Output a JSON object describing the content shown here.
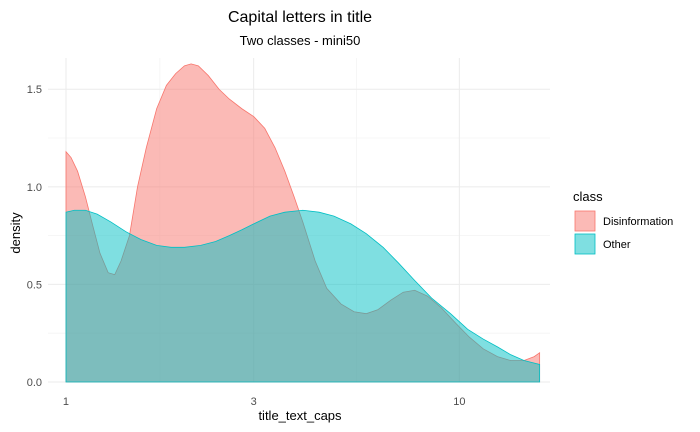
{
  "chart_data": {
    "type": "area",
    "title": "Capital letters in title",
    "subtitle": "Two classes - mini50",
    "xlabel": "title_text_caps",
    "ylabel": "density",
    "x_scale": "log10",
    "xlim": [
      0.9,
      17
    ],
    "ylim": [
      0,
      1.66
    ],
    "x_ticks": [
      1,
      3,
      10
    ],
    "x_tick_labels": [
      "1",
      "3",
      "10"
    ],
    "y_ticks": [
      0,
      0.5,
      1,
      1.5
    ],
    "y_tick_labels": [
      "0.0",
      "0.5",
      "1.0",
      "1.5"
    ],
    "grid": true,
    "legend": {
      "title": "class",
      "position": "right"
    },
    "series": [
      {
        "name": "Disinformation",
        "fill": "#f8766d",
        "fill_opacity": 0.5,
        "x": [
          1,
          1.03,
          1.07,
          1.12,
          1.17,
          1.22,
          1.28,
          1.33,
          1.38,
          1.45,
          1.52,
          1.6,
          1.7,
          1.8,
          1.9,
          2.0,
          2.08,
          2.17,
          2.3,
          2.45,
          2.6,
          2.8,
          3.0,
          3.2,
          3.4,
          3.6,
          3.8,
          4.0,
          4.3,
          4.6,
          5.0,
          5.4,
          5.8,
          6.2,
          6.7,
          7.2,
          7.7,
          8.3,
          9.0,
          9.8,
          10.6,
          11.5,
          12.5,
          13.5,
          14.6,
          15.5,
          16
        ],
        "y": [
          1.18,
          1.15,
          1.08,
          0.95,
          0.8,
          0.66,
          0.56,
          0.55,
          0.62,
          0.75,
          1.0,
          1.2,
          1.4,
          1.52,
          1.58,
          1.62,
          1.63,
          1.62,
          1.57,
          1.5,
          1.45,
          1.4,
          1.36,
          1.3,
          1.2,
          1.08,
          0.95,
          0.82,
          0.62,
          0.48,
          0.4,
          0.36,
          0.35,
          0.37,
          0.42,
          0.46,
          0.47,
          0.44,
          0.38,
          0.3,
          0.23,
          0.17,
          0.13,
          0.11,
          0.11,
          0.13,
          0.15
        ]
      },
      {
        "name": "Other",
        "fill": "#00bfc4",
        "fill_opacity": 0.5,
        "x": [
          1,
          1.05,
          1.12,
          1.2,
          1.3,
          1.42,
          1.55,
          1.7,
          1.85,
          2.0,
          2.2,
          2.4,
          2.6,
          2.8,
          3.0,
          3.3,
          3.6,
          4.0,
          4.4,
          4.8,
          5.3,
          5.8,
          6.4,
          7.0,
          7.7,
          8.5,
          9.5,
          10.5,
          11.5,
          12.5,
          13.5,
          14.6,
          16
        ],
        "y": [
          0.87,
          0.88,
          0.88,
          0.86,
          0.82,
          0.77,
          0.73,
          0.7,
          0.69,
          0.69,
          0.7,
          0.72,
          0.75,
          0.78,
          0.81,
          0.85,
          0.87,
          0.88,
          0.87,
          0.85,
          0.81,
          0.76,
          0.69,
          0.61,
          0.52,
          0.43,
          0.35,
          0.27,
          0.22,
          0.18,
          0.14,
          0.11,
          0.09
        ]
      }
    ]
  }
}
